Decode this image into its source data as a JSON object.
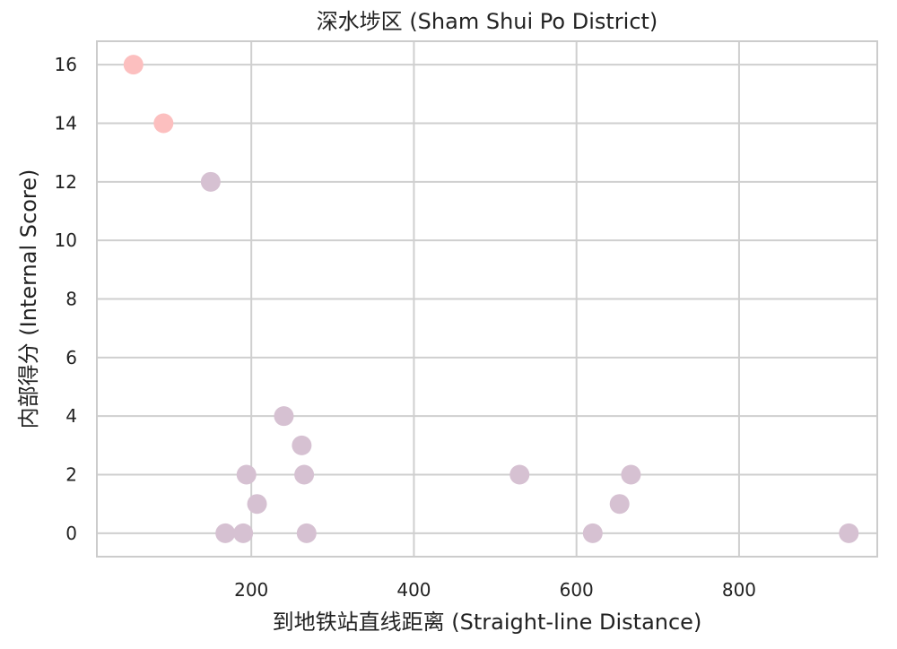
{
  "chart_data": {
    "type": "scatter",
    "title": "深水埗区 (Sham Shui Po District)",
    "xlabel": "到地铁站直线距离 (Straight-line Distance)",
    "ylabel": "内部得分 (Internal Score)",
    "xlim": [
      10,
      970
    ],
    "ylim": [
      -0.8,
      16.8
    ],
    "xticks": [
      200,
      400,
      600,
      800
    ],
    "yticks": [
      0,
      2,
      4,
      6,
      8,
      10,
      12,
      14,
      16
    ],
    "grid": true,
    "colors": {
      "high_score": "#fcbfbf",
      "other": "#d6c1d2",
      "grid": "#cfcfcf",
      "frame": "#cccccc"
    },
    "points": [
      {
        "x": 55,
        "y": 16,
        "group": "high_score"
      },
      {
        "x": 92,
        "y": 14,
        "group": "high_score"
      },
      {
        "x": 150,
        "y": 12,
        "group": "other"
      },
      {
        "x": 240,
        "y": 4,
        "group": "other"
      },
      {
        "x": 262,
        "y": 3,
        "group": "other"
      },
      {
        "x": 194,
        "y": 2,
        "group": "other"
      },
      {
        "x": 265,
        "y": 2,
        "group": "other"
      },
      {
        "x": 207,
        "y": 1,
        "group": "other"
      },
      {
        "x": 168,
        "y": 0,
        "group": "other"
      },
      {
        "x": 190,
        "y": 0,
        "group": "other"
      },
      {
        "x": 268,
        "y": 0,
        "group": "other"
      },
      {
        "x": 530,
        "y": 2,
        "group": "other"
      },
      {
        "x": 667,
        "y": 2,
        "group": "other"
      },
      {
        "x": 653,
        "y": 1,
        "group": "other"
      },
      {
        "x": 620,
        "y": 0,
        "group": "other"
      },
      {
        "x": 935,
        "y": 0,
        "group": "other"
      }
    ]
  }
}
